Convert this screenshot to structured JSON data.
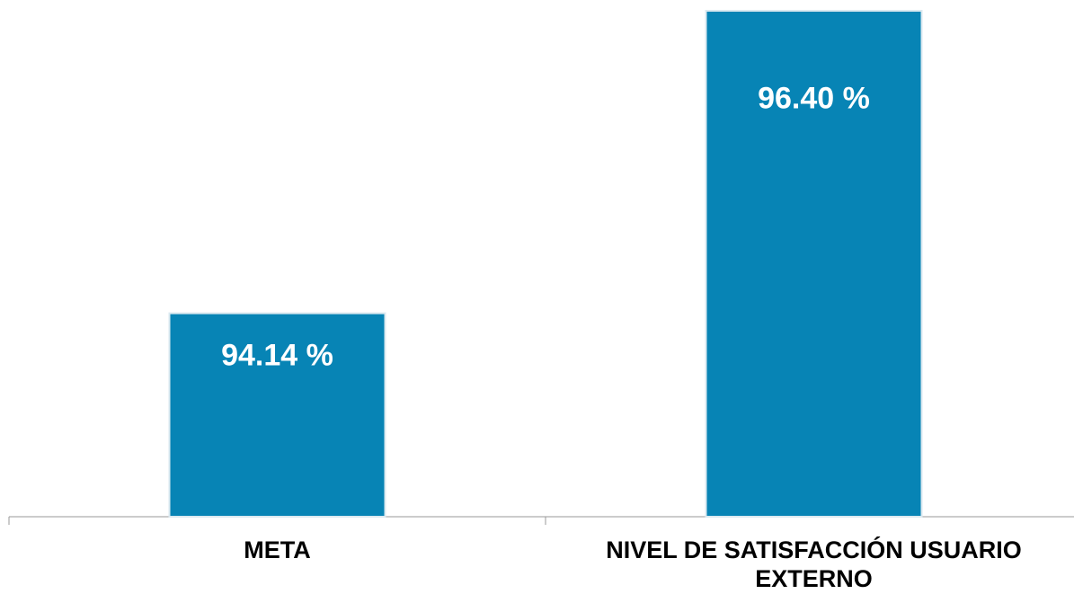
{
  "chart_data": {
    "type": "bar",
    "categories": [
      "META",
      "NIVEL DE SATISFACCIÓN USUARIO EXTERNO"
    ],
    "values": [
      94.14,
      96.4
    ],
    "value_labels": [
      "94.14 %",
      "96.40 %"
    ],
    "color": "#0784b5",
    "ylim": [
      92.62,
      96.4
    ]
  }
}
